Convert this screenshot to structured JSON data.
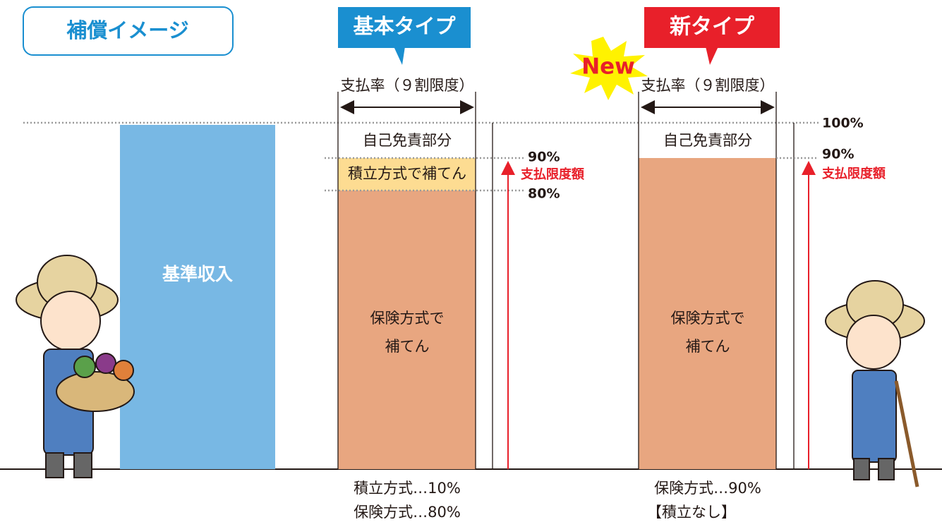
{
  "header": {
    "title": "補償イメージ"
  },
  "base_bar": {
    "label": "基準収入"
  },
  "types": [
    {
      "tag": "基本タイプ",
      "payment_rate": "支払率（９割限度）",
      "segments": {
        "deductible": "自己免責部分",
        "reserve": "積立方式で補てん",
        "insurance": [
          "保険方式で",
          "補てん"
        ]
      },
      "levels": {
        "upper": "90%",
        "limit": "支払限度額",
        "lower": "80%"
      },
      "footer": [
        "積立方式…10%",
        "保険方式…80%"
      ]
    },
    {
      "tag": "新タイプ",
      "badge": "New",
      "payment_rate": "支払率（９割限度）",
      "segments": {
        "deductible": "自己免責部分",
        "insurance": [
          "保険方式で",
          "補てん"
        ]
      },
      "levels": {
        "upper": "90%",
        "limit": "支払限度額"
      },
      "footer": [
        "保険方式…90%",
        "【積立なし】"
      ]
    }
  ],
  "top_level": "100%"
}
